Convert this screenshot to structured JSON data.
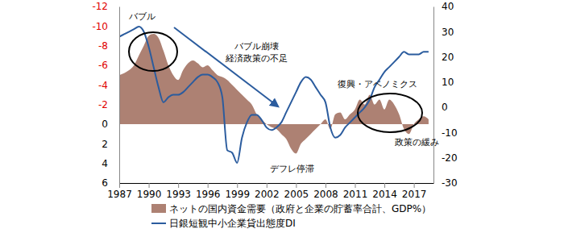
{
  "chart_data": {
    "type": "area_line",
    "x": [
      1987,
      1987.5,
      1988,
      1988.5,
      1989,
      1989.5,
      1990,
      1990.5,
      1991,
      1991.5,
      1992,
      1992.5,
      1993,
      1993.5,
      1994,
      1994.5,
      1995,
      1995.5,
      1996,
      1996.5,
      1997,
      1997.5,
      1998,
      1998.5,
      1999,
      1999.5,
      2000,
      2000.5,
      2001,
      2001.5,
      2002,
      2002.5,
      2003,
      2003.5,
      2004,
      2004.5,
      2005,
      2005.5,
      2006,
      2006.5,
      2007,
      2007.5,
      2008,
      2008.5,
      2009,
      2009.5,
      2010,
      2010.5,
      2011,
      2011.5,
      2012,
      2012.5,
      2013,
      2013.5,
      2014,
      2014.5,
      2015,
      2015.5,
      2016,
      2016.5,
      2017,
      2017.5,
      2018,
      2018.5
    ],
    "series": [
      {
        "name": "ネットの国内資金需要（政府と企業の貯蓄率合計、GDP%）",
        "type": "area",
        "color": "#ad8173",
        "values": [
          -5.0,
          -5.2,
          -5.5,
          -6.0,
          -7.0,
          -8.0,
          -9.0,
          -9.2,
          -8.8,
          -7.5,
          -6.0,
          -5.0,
          -4.5,
          -5.5,
          -6.2,
          -6.5,
          -6.2,
          -5.8,
          -6.0,
          -5.5,
          -5.0,
          -4.8,
          -4.5,
          -4.0,
          -3.5,
          -3.0,
          -2.5,
          -2.0,
          -1.0,
          -0.5,
          0.0,
          0.3,
          0.5,
          1.0,
          1.5,
          2.5,
          3.0,
          2.0,
          1.5,
          1.0,
          0.5,
          0.0,
          -0.5,
          0.5,
          -1.0,
          -1.2,
          -0.5,
          -1.0,
          -1.5,
          -2.5,
          -2.0,
          -3.0,
          -2.0,
          -2.5,
          -1.5,
          -2.5,
          -2.0,
          -1.0,
          0.5,
          1.0,
          0.0,
          -0.5,
          -0.8,
          -0.5
        ]
      },
      {
        "name": "日銀短観中小企業貸出態度DI",
        "type": "line",
        "color": "#2b5c9e",
        "axis": "y2",
        "values": [
          28,
          29,
          30,
          31,
          32,
          30,
          24,
          16,
          8,
          2,
          4,
          5,
          5,
          6,
          8,
          10,
          12,
          13,
          13,
          12,
          10,
          4,
          -17,
          -18,
          -22,
          -12,
          -6,
          -3,
          -3,
          -5,
          -8,
          -9,
          -8,
          -6,
          -2,
          2,
          6,
          10,
          12,
          11,
          8,
          5,
          2,
          -8,
          -12,
          -11,
          -8,
          -6,
          -4,
          -2,
          0,
          3,
          8,
          11,
          14,
          16,
          18,
          20,
          22,
          21,
          21,
          21,
          22,
          22
        ]
      }
    ],
    "xlim": [
      1987,
      2019
    ],
    "xticks": [
      1987,
      1990,
      1993,
      1996,
      1999,
      2002,
      2005,
      2008,
      2011,
      2014,
      2017
    ],
    "ylim": [
      6,
      -12
    ],
    "yticks": [
      -12,
      -10,
      -8,
      -6,
      -4,
      -2,
      0,
      2,
      4,
      6
    ],
    "y2lim": [
      -30,
      40
    ],
    "y2ticks": [
      -30,
      -20,
      -10,
      0,
      10,
      20,
      30,
      40
    ],
    "annotations": [
      "バブル",
      "バブル崩壊",
      "経済政策の不足",
      "デフレ停滞",
      "復興・アベノミクス",
      "政策の緩み"
    ],
    "grid": false,
    "legend": "bottom"
  }
}
